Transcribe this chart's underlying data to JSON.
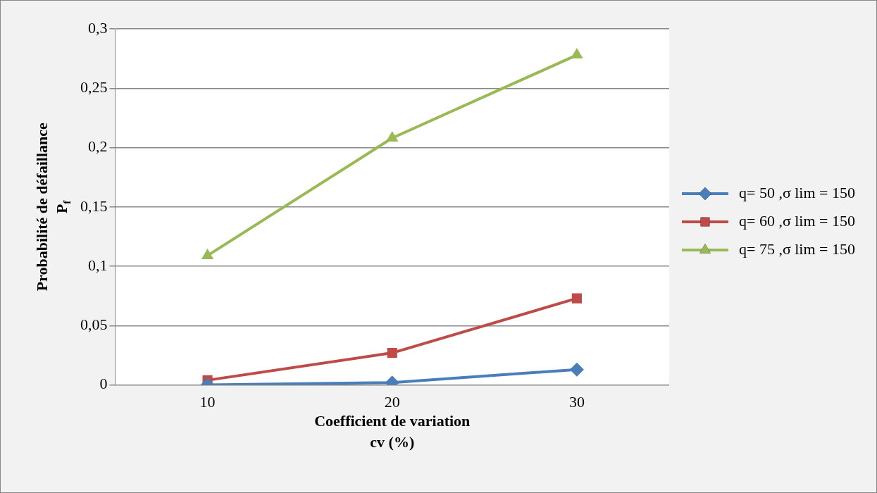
{
  "chart_data": {
    "type": "line",
    "xlabel": "Coefficient de variation\ncv (%)",
    "ylabel": "Probabilité de défaillance\nP$_{f}$",
    "categories": [
      "10",
      "20",
      "30"
    ],
    "series": [
      {
        "name": "q= 50 ,σ lim = 150",
        "color": "#4a7ebb",
        "marker": "diamond",
        "values": [
          0.0,
          0.002,
          0.013
        ]
      },
      {
        "name": "q= 60 ,σ lim = 150",
        "color": "#be4b48",
        "marker": "square",
        "values": [
          0.004,
          0.027,
          0.073
        ]
      },
      {
        "name": "q= 75 ,σ lim = 150",
        "color": "#98b954",
        "marker": "triangle",
        "values": [
          0.109,
          0.208,
          0.278
        ]
      }
    ],
    "ylim": [
      0,
      0.3
    ],
    "yticks": [
      {
        "value": 0,
        "label": "0"
      },
      {
        "value": 0.05,
        "label": "0,05"
      },
      {
        "value": 0.1,
        "label": "0,1"
      },
      {
        "value": 0.15,
        "label": "0,15"
      },
      {
        "value": 0.2,
        "label": "0,2"
      },
      {
        "value": 0.25,
        "label": "0,25"
      },
      {
        "value": 0.3,
        "label": "0,3"
      }
    ],
    "grid": "y",
    "legend": "right",
    "line_style": "solid"
  }
}
